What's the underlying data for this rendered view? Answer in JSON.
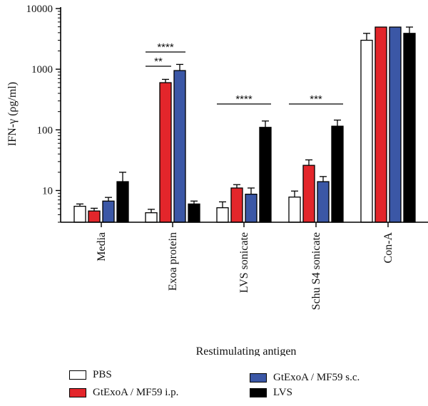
{
  "chart_data": {
    "type": "bar",
    "ylabel": "IFN-γ (ρg/ml)",
    "xlabel": "Restimulating antigen",
    "yscale": "log",
    "ylim": [
      3,
      10000
    ],
    "yticks": [
      10,
      100,
      1000,
      10000
    ],
    "ytick_labels": [
      "10",
      "100",
      "1000",
      "10000"
    ],
    "categories": [
      "Media",
      "Exoa protein",
      "LVS sonicate",
      "Schu S4 sonicate",
      "Con-A"
    ],
    "series": [
      {
        "name": "PBS",
        "color": "#ffffff",
        "values": [
          5.5,
          4.3,
          5.2,
          7.8,
          3000
        ],
        "errors": [
          6.0,
          4.9,
          6.5,
          9.8,
          3900
        ]
      },
      {
        "name": "GtExoA / MF59 i.p.",
        "color": "#e3262b",
        "values": [
          4.6,
          600,
          11,
          26,
          4950
        ],
        "errors": [
          5.1,
          680,
          12.5,
          32,
          4950
        ]
      },
      {
        "name": "GtExoA / MF59 s.c.",
        "color": "#3b57a6",
        "values": [
          6.7,
          950,
          8.7,
          14,
          4950
        ],
        "errors": [
          7.7,
          1200,
          11,
          17,
          4950
        ]
      },
      {
        "name": "LVS",
        "color": "#000000",
        "values": [
          14,
          6.0,
          110,
          115,
          3900
        ],
        "errors": [
          20,
          6.7,
          140,
          145,
          4950
        ]
      }
    ],
    "significance": [
      {
        "label": "****",
        "category": "Exoa protein",
        "from_series": 0,
        "to_series": 2
      },
      {
        "label": "**",
        "category": "Exoa protein",
        "from_series": 0,
        "to_series": 1
      },
      {
        "label": "****",
        "category": "LVS sonicate",
        "from_series": 0,
        "to_series": 3
      },
      {
        "label": "***",
        "category": "Schu S4 sonicate",
        "from_series": 0,
        "to_series": 3
      }
    ],
    "legend_position": "bottom"
  }
}
